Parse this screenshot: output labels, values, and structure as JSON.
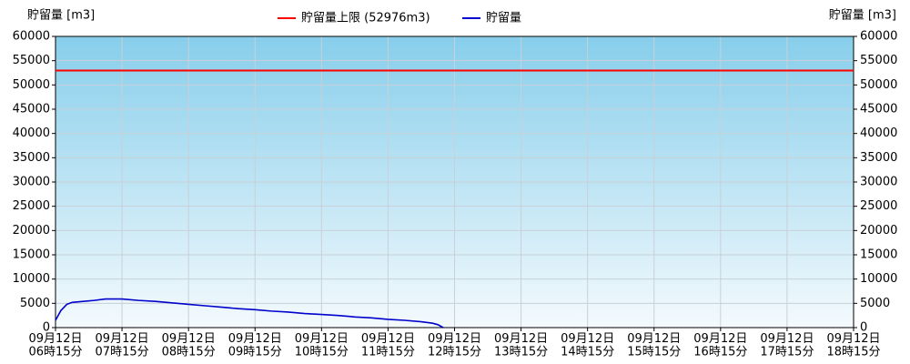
{
  "chart_data": {
    "type": "line",
    "y_label": "貯留量 [m3]",
    "y2_label": "貯留量 [m3]",
    "xlim": [
      6.25,
      18.25
    ],
    "xticks": [
      {
        "value": 6.25,
        "label": "09月12日\n06時15分"
      },
      {
        "value": 7.25,
        "label": "09月12日\n07時15分"
      },
      {
        "value": 8.25,
        "label": "09月12日\n08時15分"
      },
      {
        "value": 9.25,
        "label": "09月12日\n09時15分"
      },
      {
        "value": 10.25,
        "label": "09月12日\n10時15分"
      },
      {
        "value": 11.25,
        "label": "09月12日\n11時15分"
      },
      {
        "value": 12.25,
        "label": "09月12日\n12時15分"
      },
      {
        "value": 13.25,
        "label": "09月12日\n13時15分"
      },
      {
        "value": 14.25,
        "label": "09月12日\n14時15分"
      },
      {
        "value": 15.25,
        "label": "09月12日\n15時15分"
      },
      {
        "value": 16.25,
        "label": "09月12日\n16時15分"
      },
      {
        "value": 17.25,
        "label": "09月12日\n17時15分"
      },
      {
        "value": 18.25,
        "label": "09月12日\n18時15分"
      }
    ],
    "ylim": [
      0,
      60000
    ],
    "yticks": [
      0,
      5000,
      10000,
      15000,
      20000,
      25000,
      30000,
      35000,
      40000,
      45000,
      50000,
      55000,
      60000
    ],
    "y2lim": [
      0,
      60000
    ],
    "y2ticks": [
      0,
      5000,
      10000,
      15000,
      20000,
      25000,
      30000,
      35000,
      40000,
      45000,
      50000,
      55000,
      60000
    ],
    "grid": true,
    "limit": {
      "name": "貯留量上限 (52976m3)",
      "color": "#ff0000",
      "value": 52976
    },
    "series": [
      {
        "name": "貯留量",
        "color": "#0000cc",
        "x": [
          6.25,
          6.33,
          6.42,
          6.5,
          6.67,
          6.83,
          7.0,
          7.25,
          7.5,
          7.75,
          8.0,
          8.25,
          8.5,
          8.75,
          9.0,
          9.25,
          9.5,
          9.75,
          10.0,
          10.25,
          10.5,
          10.75,
          11.0,
          11.25,
          11.5,
          11.75,
          11.92,
          12.0,
          12.08
        ],
        "values": [
          1500,
          3500,
          4800,
          5200,
          5400,
          5600,
          5900,
          5900,
          5600,
          5400,
          5100,
          4800,
          4500,
          4200,
          3900,
          3700,
          3400,
          3200,
          2900,
          2700,
          2500,
          2200,
          2000,
          1700,
          1500,
          1200,
          900,
          600,
          0
        ]
      }
    ]
  }
}
